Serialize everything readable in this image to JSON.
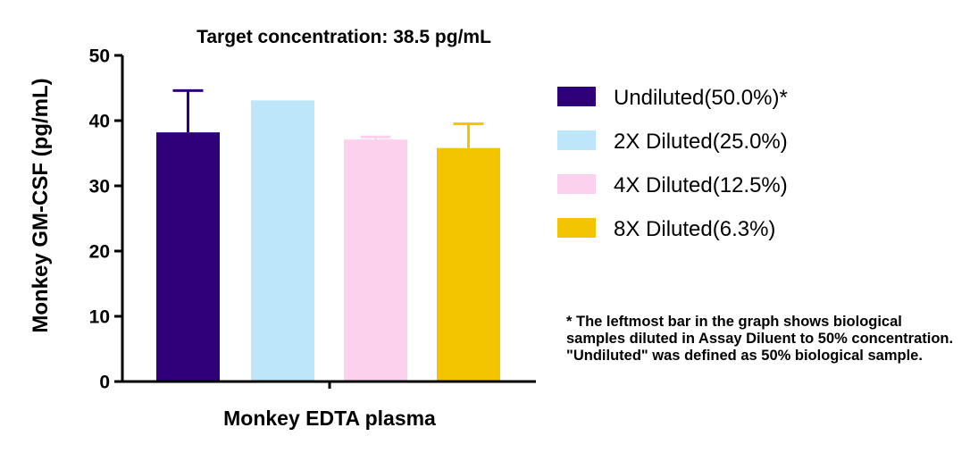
{
  "chart_data": {
    "type": "bar",
    "title": "Target concentration: 38.5 pg/mL",
    "xlabel": "Monkey EDTA plasma",
    "ylabel": "Monkey GM-CSF (pg/mL)",
    "ylim": [
      0,
      50
    ],
    "yticks": [
      "0",
      "10",
      "20",
      "30",
      "40",
      "50"
    ],
    "grid": false,
    "legend_position": "right",
    "series": [
      {
        "name": "Undiluted(50.0%)*",
        "value": 38.2,
        "error": 6.4,
        "color": "#2e0079"
      },
      {
        "name": "2X Diluted(25.0%)",
        "value": 43.1,
        "error": 0,
        "color": "#bde6fb"
      },
      {
        "name": "4X Diluted(12.5%)",
        "value": 37.1,
        "error": 0.4,
        "color": "#fbd1ee"
      },
      {
        "name": "8X Diluted(6.3%)",
        "value": 35.8,
        "error": 3.7,
        "color": "#f3c400"
      }
    ],
    "footnote": "* The leftmost bar in the graph shows biological samples diluted in Assay Diluent to 50% concentration. \"Undiluted\" was defined as 50% biological sample."
  }
}
